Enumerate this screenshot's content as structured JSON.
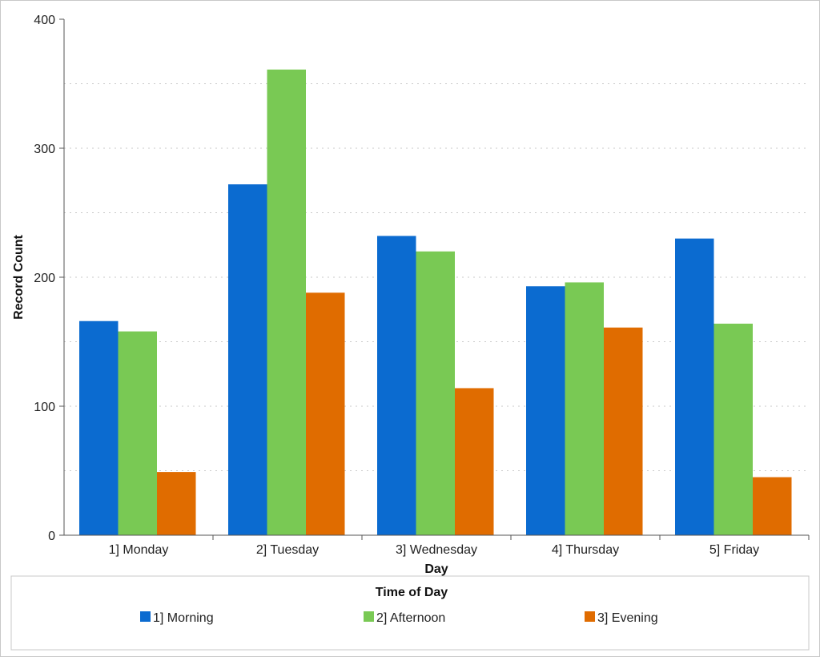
{
  "chart_data": {
    "type": "bar",
    "title": "",
    "xlabel": "Day",
    "ylabel": "Record Count",
    "categories": [
      "1] Monday",
      "2] Tuesday",
      "3] Wednesday",
      "4] Thursday",
      "5] Friday"
    ],
    "series": [
      {
        "name": "1] Morning",
        "color": "#0b6bd0",
        "values": [
          166,
          272,
          232,
          193,
          230
        ]
      },
      {
        "name": "2] Afternoon",
        "color": "#79c954",
        "values": [
          158,
          361,
          220,
          196,
          164
        ]
      },
      {
        "name": "3] Evening",
        "color": "#e06c00",
        "values": [
          49,
          188,
          114,
          161,
          45
        ]
      }
    ],
    "ylim": [
      0,
      400
    ],
    "yticks": [
      "0",
      "100",
      "200",
      "300",
      "400"
    ],
    "grid": true,
    "legend": {
      "title": "Time of Day",
      "placement": "bottom"
    }
  }
}
